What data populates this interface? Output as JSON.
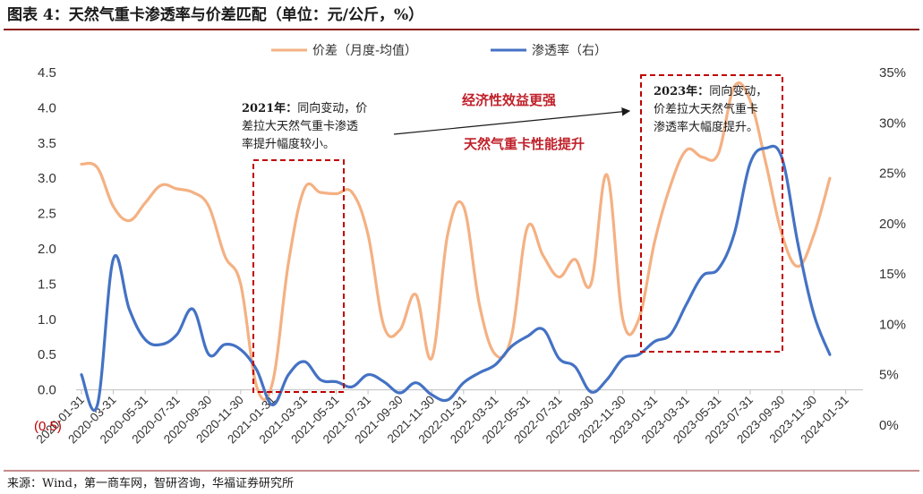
{
  "title": "图表 4：天然气重卡渗透率与价差匹配（单位：元/公斤，%）",
  "source": "来源：Wind，第一商车网，智研咨询，华福证券研究所",
  "colors": {
    "price_gap": "#f4b183",
    "penetration": "#4472c4",
    "box": "#c00000",
    "annotation": "#c0212b",
    "title_rule": "#8b1a1a"
  },
  "annotations": {
    "note_2021_label": "2021年：",
    "note_2021_lines": [
      "同向变动，价",
      "差拉大天然气重卡渗透",
      "率提升幅度较小。"
    ],
    "note_2023_label": "2023年：",
    "note_2023_lines": [
      "同向变动，",
      "价差拉大天然气重卡",
      "渗透率大幅度提升。"
    ],
    "economy": "经济性效益更强",
    "performance": "天然气重卡性能提升",
    "neg_marker": "(0.5)"
  },
  "chart_data": {
    "type": "line",
    "legend_position": "top",
    "grid": false,
    "x_tick_labels": [
      "2020-01-31",
      "2020-03-31",
      "2020-05-31",
      "2020-07-31",
      "2020-09-30",
      "2020-11-30",
      "2021-01-31",
      "2021-03-31",
      "2021-05-31",
      "2021-07-31",
      "2021-09-30",
      "2021-11-30",
      "2022-01-31",
      "2022-03-31",
      "2022-05-31",
      "2022-07-31",
      "2022-09-30",
      "2022-11-30",
      "2023-01-31",
      "2023-03-31",
      "2023-05-31",
      "2023-07-31",
      "2023-09-30",
      "2023-11-30",
      "2024-01-31"
    ],
    "y_left": {
      "ticks": [
        "0.0",
        "0.5",
        "1.0",
        "1.5",
        "2.0",
        "2.5",
        "3.0",
        "3.5",
        "4.0",
        "4.5"
      ],
      "range": [
        -0.5,
        4.5
      ]
    },
    "y_right": {
      "ticks": [
        "0%",
        "5%",
        "10%",
        "15%",
        "20%",
        "25%",
        "30%",
        "35%"
      ],
      "range": [
        0,
        35
      ]
    },
    "series": [
      {
        "name": "价差（月度-均值）",
        "axis": "left",
        "x": [
          0,
          0.5,
          1,
          1.5,
          2,
          2.5,
          3,
          3.5,
          4,
          4.5,
          5,
          5.5,
          6,
          6.5,
          7,
          7.5,
          8,
          8.5,
          9,
          9.5,
          10,
          10.5,
          11,
          11.5,
          12,
          12.5,
          13,
          13.5,
          14,
          14.5,
          15,
          15.5,
          16,
          16.5,
          17,
          17.5,
          18,
          18.5,
          19,
          19.5,
          20,
          20.5,
          21,
          21.5,
          22,
          22.5,
          23,
          23.5,
          24,
          24.5
        ],
        "values": [
          3.2,
          3.15,
          2.6,
          2.4,
          2.65,
          2.9,
          2.85,
          2.8,
          2.6,
          1.9,
          1.5,
          0.05,
          0.1,
          1.8,
          2.85,
          2.8,
          2.78,
          2.8,
          2.2,
          0.9,
          0.85,
          1.35,
          0.45,
          2.2,
          2.6,
          1.2,
          0.5,
          0.75,
          2.3,
          1.9,
          1.6,
          1.85,
          1.5,
          3.05,
          1.0,
          1.0,
          2.1,
          2.9,
          3.4,
          3.3,
          3.35,
          4.3,
          4.1,
          3.2,
          2.2,
          1.75,
          2.2,
          3.0,
          null,
          null
        ]
      },
      {
        "name": "渗透率（右）",
        "axis": "right",
        "x": [
          0,
          0.5,
          1,
          1.5,
          2,
          2.5,
          3,
          3.5,
          4,
          4.5,
          5,
          5.5,
          6,
          6.5,
          7,
          7.5,
          8,
          8.5,
          9,
          9.5,
          10,
          10.5,
          11,
          11.5,
          12,
          12.5,
          13,
          13.5,
          14,
          14.5,
          15,
          15.5,
          16,
          16.5,
          17,
          17.5,
          18,
          18.5,
          19,
          19.5,
          20,
          20.5,
          21,
          21.5,
          22,
          22.5,
          23,
          23.5,
          24,
          24.5
        ],
        "values": [
          5.0,
          2.0,
          16.5,
          11.5,
          8.5,
          8.0,
          9.0,
          11.5,
          7.0,
          8.0,
          7.5,
          5.5,
          2.0,
          5.0,
          6.3,
          4.5,
          4.3,
          3.8,
          5.0,
          4.3,
          3.2,
          4.2,
          3.0,
          2.5,
          4.2,
          5.2,
          6.0,
          7.8,
          8.8,
          9.5,
          6.6,
          5.8,
          3.3,
          4.5,
          6.6,
          7.0,
          8.3,
          9.0,
          12.0,
          14.8,
          15.5,
          19.0,
          26.0,
          27.5,
          26.5,
          18.0,
          11.0,
          7.0,
          null,
          null
        ]
      }
    ]
  }
}
